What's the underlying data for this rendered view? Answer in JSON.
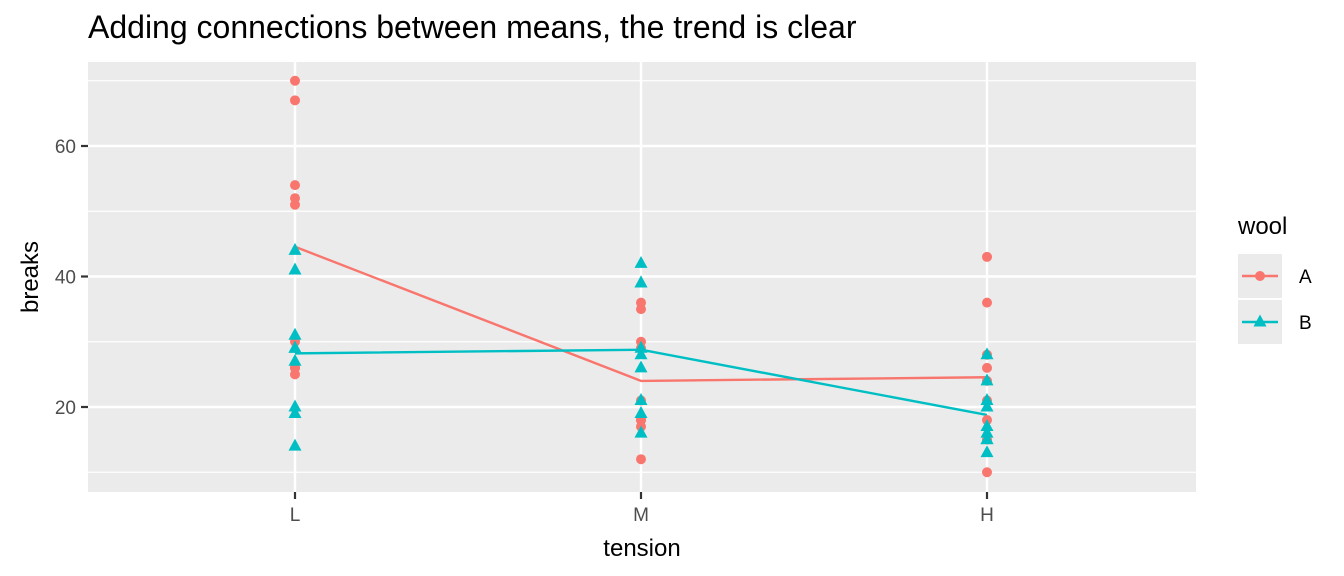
{
  "chart_data": {
    "type": "scatter",
    "title": "Adding connections between means, the trend is clear",
    "xlabel": "tension",
    "ylabel": "breaks",
    "categories": [
      "L",
      "M",
      "H"
    ],
    "y_ticks": [
      20,
      40,
      60
    ],
    "ylim": [
      7,
      73
    ],
    "grid": true,
    "legend": {
      "title": "wool",
      "placement": "right"
    },
    "series": [
      {
        "name": "A",
        "color": "#F8766D",
        "marker": "circle",
        "points": {
          "L": [
            26,
            30,
            54,
            25,
            70,
            52,
            51,
            26,
            67
          ],
          "M": [
            18,
            21,
            29,
            17,
            12,
            18,
            35,
            30,
            36
          ],
          "H": [
            36,
            21,
            24,
            18,
            10,
            43,
            28,
            15,
            26
          ]
        },
        "means": [
          44.56,
          24.0,
          24.56
        ]
      },
      {
        "name": "B",
        "color": "#00BFC4",
        "marker": "triangle",
        "points": {
          "L": [
            27,
            14,
            29,
            19,
            29,
            31,
            41,
            20,
            44
          ],
          "M": [
            42,
            26,
            19,
            16,
            39,
            28,
            21,
            39,
            29
          ],
          "H": [
            20,
            21,
            24,
            17,
            13,
            15,
            15,
            16,
            28
          ]
        },
        "means": [
          28.22,
          28.78,
          18.78
        ]
      }
    ]
  }
}
